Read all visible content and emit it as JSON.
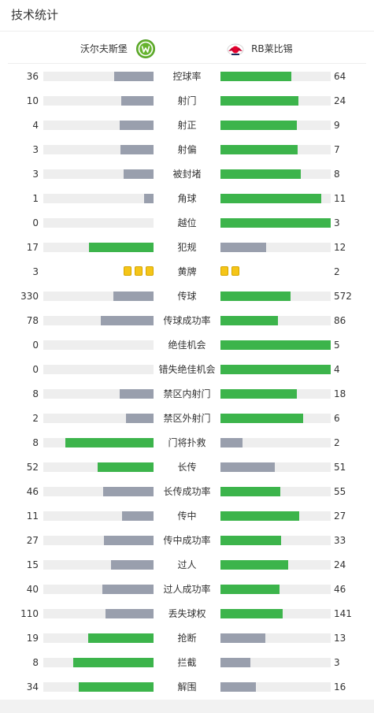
{
  "header": {
    "title": "技术统计"
  },
  "teams": {
    "home": {
      "name": "沃尔夫斯堡",
      "logo_icon": "wolfsburg-logo-icon"
    },
    "away": {
      "name": "RB莱比锡",
      "logo_icon": "rb-leipzig-logo-icon"
    }
  },
  "colors": {
    "better": "#3cb44b",
    "worse": "#999fad",
    "track": "#eeeeee",
    "card": "#f5c518"
  },
  "stats": [
    {
      "label": "控球率",
      "home": "36",
      "away": "64",
      "home_frac": 0.36,
      "away_frac": 0.64,
      "home_color": "worse",
      "away_color": "better"
    },
    {
      "label": "射门",
      "home": "10",
      "away": "24",
      "home_frac": 0.294,
      "away_frac": 0.706,
      "home_color": "worse",
      "away_color": "better"
    },
    {
      "label": "射正",
      "home": "4",
      "away": "9",
      "home_frac": 0.308,
      "away_frac": 0.692,
      "home_color": "worse",
      "away_color": "better"
    },
    {
      "label": "射偏",
      "home": "3",
      "away": "7",
      "home_frac": 0.3,
      "away_frac": 0.7,
      "home_color": "worse",
      "away_color": "better"
    },
    {
      "label": "被封堵",
      "home": "3",
      "away": "8",
      "home_frac": 0.273,
      "away_frac": 0.727,
      "home_color": "worse",
      "away_color": "better"
    },
    {
      "label": "角球",
      "home": "1",
      "away": "11",
      "home_frac": 0.083,
      "away_frac": 0.917,
      "home_color": "worse",
      "away_color": "better"
    },
    {
      "label": "越位",
      "home": "0",
      "away": "3",
      "home_frac": 0,
      "away_frac": 1,
      "home_color": "worse",
      "away_color": "better"
    },
    {
      "label": "犯规",
      "home": "17",
      "away": "12",
      "home_frac": 0.586,
      "away_frac": 0.414,
      "home_color": "better",
      "away_color": "worse"
    },
    {
      "label": "黄牌",
      "home": "3",
      "away": "2",
      "cards": true,
      "home_cards": 3,
      "away_cards": 2
    },
    {
      "label": "传球",
      "home": "330",
      "away": "572",
      "home_frac": 0.366,
      "away_frac": 0.634,
      "home_color": "worse",
      "away_color": "better"
    },
    {
      "label": "传球成功率",
      "home": "78",
      "away": "86",
      "home_frac": 0.476,
      "away_frac": 0.524,
      "home_color": "worse",
      "away_color": "better"
    },
    {
      "label": "绝佳机会",
      "home": "0",
      "away": "5",
      "home_frac": 0,
      "away_frac": 1,
      "home_color": "worse",
      "away_color": "better"
    },
    {
      "label": "错失绝佳机会",
      "home": "0",
      "away": "4",
      "home_frac": 0,
      "away_frac": 1,
      "home_color": "worse",
      "away_color": "better"
    },
    {
      "label": "禁区内射门",
      "home": "8",
      "away": "18",
      "home_frac": 0.308,
      "away_frac": 0.692,
      "home_color": "worse",
      "away_color": "better"
    },
    {
      "label": "禁区外射门",
      "home": "2",
      "away": "6",
      "home_frac": 0.25,
      "away_frac": 0.75,
      "home_color": "worse",
      "away_color": "better"
    },
    {
      "label": "门将扑救",
      "home": "8",
      "away": "2",
      "home_frac": 0.8,
      "away_frac": 0.2,
      "home_color": "better",
      "away_color": "worse"
    },
    {
      "label": "长传",
      "home": "52",
      "away": "51",
      "home_frac": 0.505,
      "away_frac": 0.495,
      "home_color": "better",
      "away_color": "worse"
    },
    {
      "label": "长传成功率",
      "home": "46",
      "away": "55",
      "home_frac": 0.455,
      "away_frac": 0.545,
      "home_color": "worse",
      "away_color": "better"
    },
    {
      "label": "传中",
      "home": "11",
      "away": "27",
      "home_frac": 0.289,
      "away_frac": 0.711,
      "home_color": "worse",
      "away_color": "better"
    },
    {
      "label": "传中成功率",
      "home": "27",
      "away": "33",
      "home_frac": 0.45,
      "away_frac": 0.55,
      "home_color": "worse",
      "away_color": "better"
    },
    {
      "label": "过人",
      "home": "15",
      "away": "24",
      "home_frac": 0.385,
      "away_frac": 0.615,
      "home_color": "worse",
      "away_color": "better"
    },
    {
      "label": "过人成功率",
      "home": "40",
      "away": "46",
      "home_frac": 0.465,
      "away_frac": 0.535,
      "home_color": "worse",
      "away_color": "better"
    },
    {
      "label": "丢失球权",
      "home": "110",
      "away": "141",
      "home_frac": 0.438,
      "away_frac": 0.562,
      "home_color": "worse",
      "away_color": "better"
    },
    {
      "label": "抢断",
      "home": "19",
      "away": "13",
      "home_frac": 0.594,
      "away_frac": 0.406,
      "home_color": "better",
      "away_color": "worse"
    },
    {
      "label": "拦截",
      "home": "8",
      "away": "3",
      "home_frac": 0.727,
      "away_frac": 0.273,
      "home_color": "better",
      "away_color": "worse"
    },
    {
      "label": "解围",
      "home": "34",
      "away": "16",
      "home_frac": 0.68,
      "away_frac": 0.32,
      "home_color": "better",
      "away_color": "worse"
    }
  ]
}
